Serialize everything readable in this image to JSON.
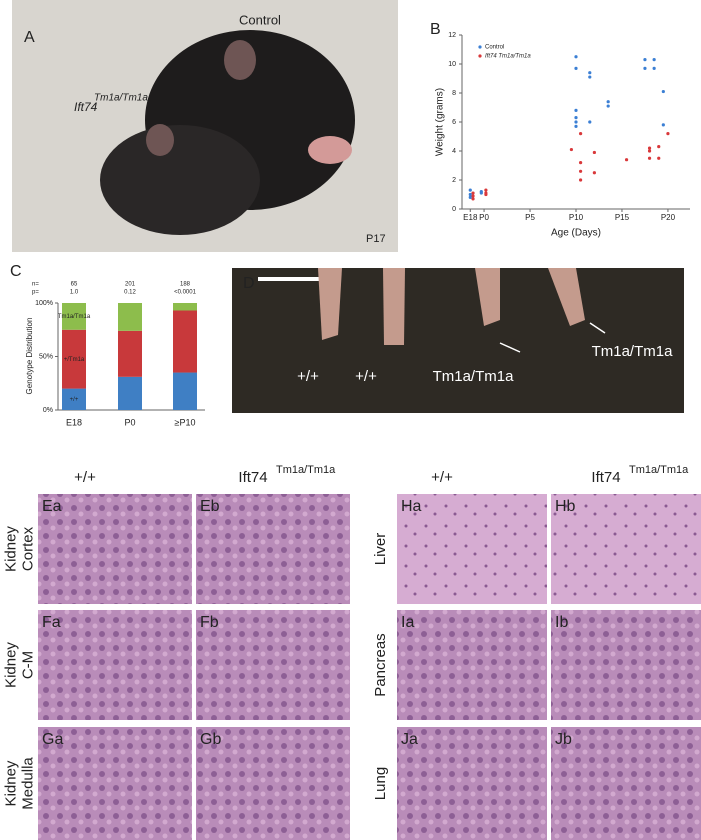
{
  "panel_a": {
    "label": "A",
    "control": "Control",
    "mutant": "Ift74",
    "mutant_sup": "Tm1a/Tm1a",
    "age": "P17"
  },
  "chart_data": [
    {
      "type": "scatter",
      "label": "B",
      "x_label": "Age (Days)",
      "y_label": "Weight (grams)",
      "xlim": [
        -2.4,
        22.4
      ],
      "ylim": [
        0,
        12
      ],
      "xticks": [
        {
          "value": -1.5,
          "label": "E18"
        },
        {
          "value": 0,
          "label": "P0"
        },
        {
          "value": 5,
          "label": "P5"
        },
        {
          "value": 10,
          "label": "P10"
        },
        {
          "value": 15,
          "label": "P15"
        },
        {
          "value": 20,
          "label": "P20"
        }
      ],
      "yticks": [
        0,
        2,
        4,
        6,
        8,
        10,
        12
      ],
      "series": [
        {
          "name": "Control",
          "color": "#3b7fd4",
          "x": [
            -1.5,
            -1.5,
            -1.5,
            -0.3,
            -0.3,
            10,
            10,
            10,
            10,
            10,
            10,
            11.5,
            11.5,
            11.5,
            13.5,
            13.5,
            17.5,
            17.5,
            18.5,
            18.5,
            19.5,
            19.5
          ],
          "values": [
            1.3,
            1.0,
            0.8,
            1.2,
            1.1,
            10.5,
            9.7,
            6.8,
            6.3,
            6.0,
            5.7,
            9.4,
            9.1,
            6.0,
            7.4,
            7.1,
            10.3,
            9.7,
            10.3,
            9.7,
            8.1,
            5.8
          ]
        },
        {
          "name": "Ift74 Tm1a/Tm1a",
          "color": "#d9383a",
          "x": [
            -1.2,
            -1.2,
            -1.2,
            0.2,
            0.2,
            0.2,
            9.5,
            10.5,
            10.5,
            10.5,
            10.5,
            12,
            12,
            15.5,
            18,
            18,
            18,
            19,
            19,
            20
          ],
          "values": [
            1.1,
            0.9,
            0.7,
            1.3,
            1.1,
            1.0,
            4.1,
            5.2,
            3.2,
            2.6,
            2.0,
            3.9,
            2.5,
            3.4,
            4.2,
            4.0,
            3.5,
            4.3,
            3.5,
            5.2
          ]
        }
      ]
    },
    {
      "type": "stacked-bar",
      "label": "C",
      "y_label": "Genotype Distribution",
      "categories": [
        "E18",
        "P0",
        "≥P10"
      ],
      "ylim": [
        0,
        100
      ],
      "yticks": [
        {
          "value": 0,
          "label": "0%"
        },
        {
          "value": 50,
          "label": "50%"
        },
        {
          "value": 100,
          "label": "100%"
        }
      ],
      "n_label": "n=",
      "p_label": "p=",
      "n": [
        65,
        201,
        188
      ],
      "p": [
        "1.0",
        "0.12",
        "<0.0001"
      ],
      "series": [
        {
          "name": "+/+",
          "color": "#3f7fc4",
          "values": [
            20,
            31,
            35
          ]
        },
        {
          "name": "+/Tm1a",
          "color": "#c8393b",
          "values": [
            55,
            43,
            58
          ]
        },
        {
          "name": "Tm1a/Tm1a",
          "color": "#8dbd4c",
          "values": [
            25,
            26,
            7
          ]
        }
      ]
    }
  ],
  "panel_d": {
    "label": "D",
    "genotypes": [
      "+/+",
      "+/+",
      "Tm1a/Tm1a",
      "Tm1a/Tm1a"
    ]
  },
  "histology": {
    "left": {
      "headers": [
        "+/+",
        {
          "gene": "Ift74",
          "allele": "Tm1a/Tm1a"
        }
      ],
      "rows": [
        {
          "tissue": [
            "Kidney",
            "Cortex"
          ],
          "panels": [
            "Ea",
            "Eb"
          ]
        },
        {
          "tissue": [
            "Kidney",
            "C-M"
          ],
          "panels": [
            "Fa",
            "Fb"
          ]
        },
        {
          "tissue": [
            "Kidney",
            "Medulla"
          ],
          "panels": [
            "Ga",
            "Gb"
          ]
        }
      ]
    },
    "right": {
      "headers": [
        "+/+",
        {
          "gene": "Ift74",
          "allele": "Tm1a/Tm1a"
        }
      ],
      "rows": [
        {
          "tissue": [
            "Liver"
          ],
          "panels": [
            "Ha",
            "Hb"
          ]
        },
        {
          "tissue": [
            "Pancreas"
          ],
          "panels": [
            "Ia",
            "Ib"
          ]
        },
        {
          "tissue": [
            "Lung"
          ],
          "panels": [
            "Ja",
            "Jb"
          ]
        }
      ]
    }
  }
}
